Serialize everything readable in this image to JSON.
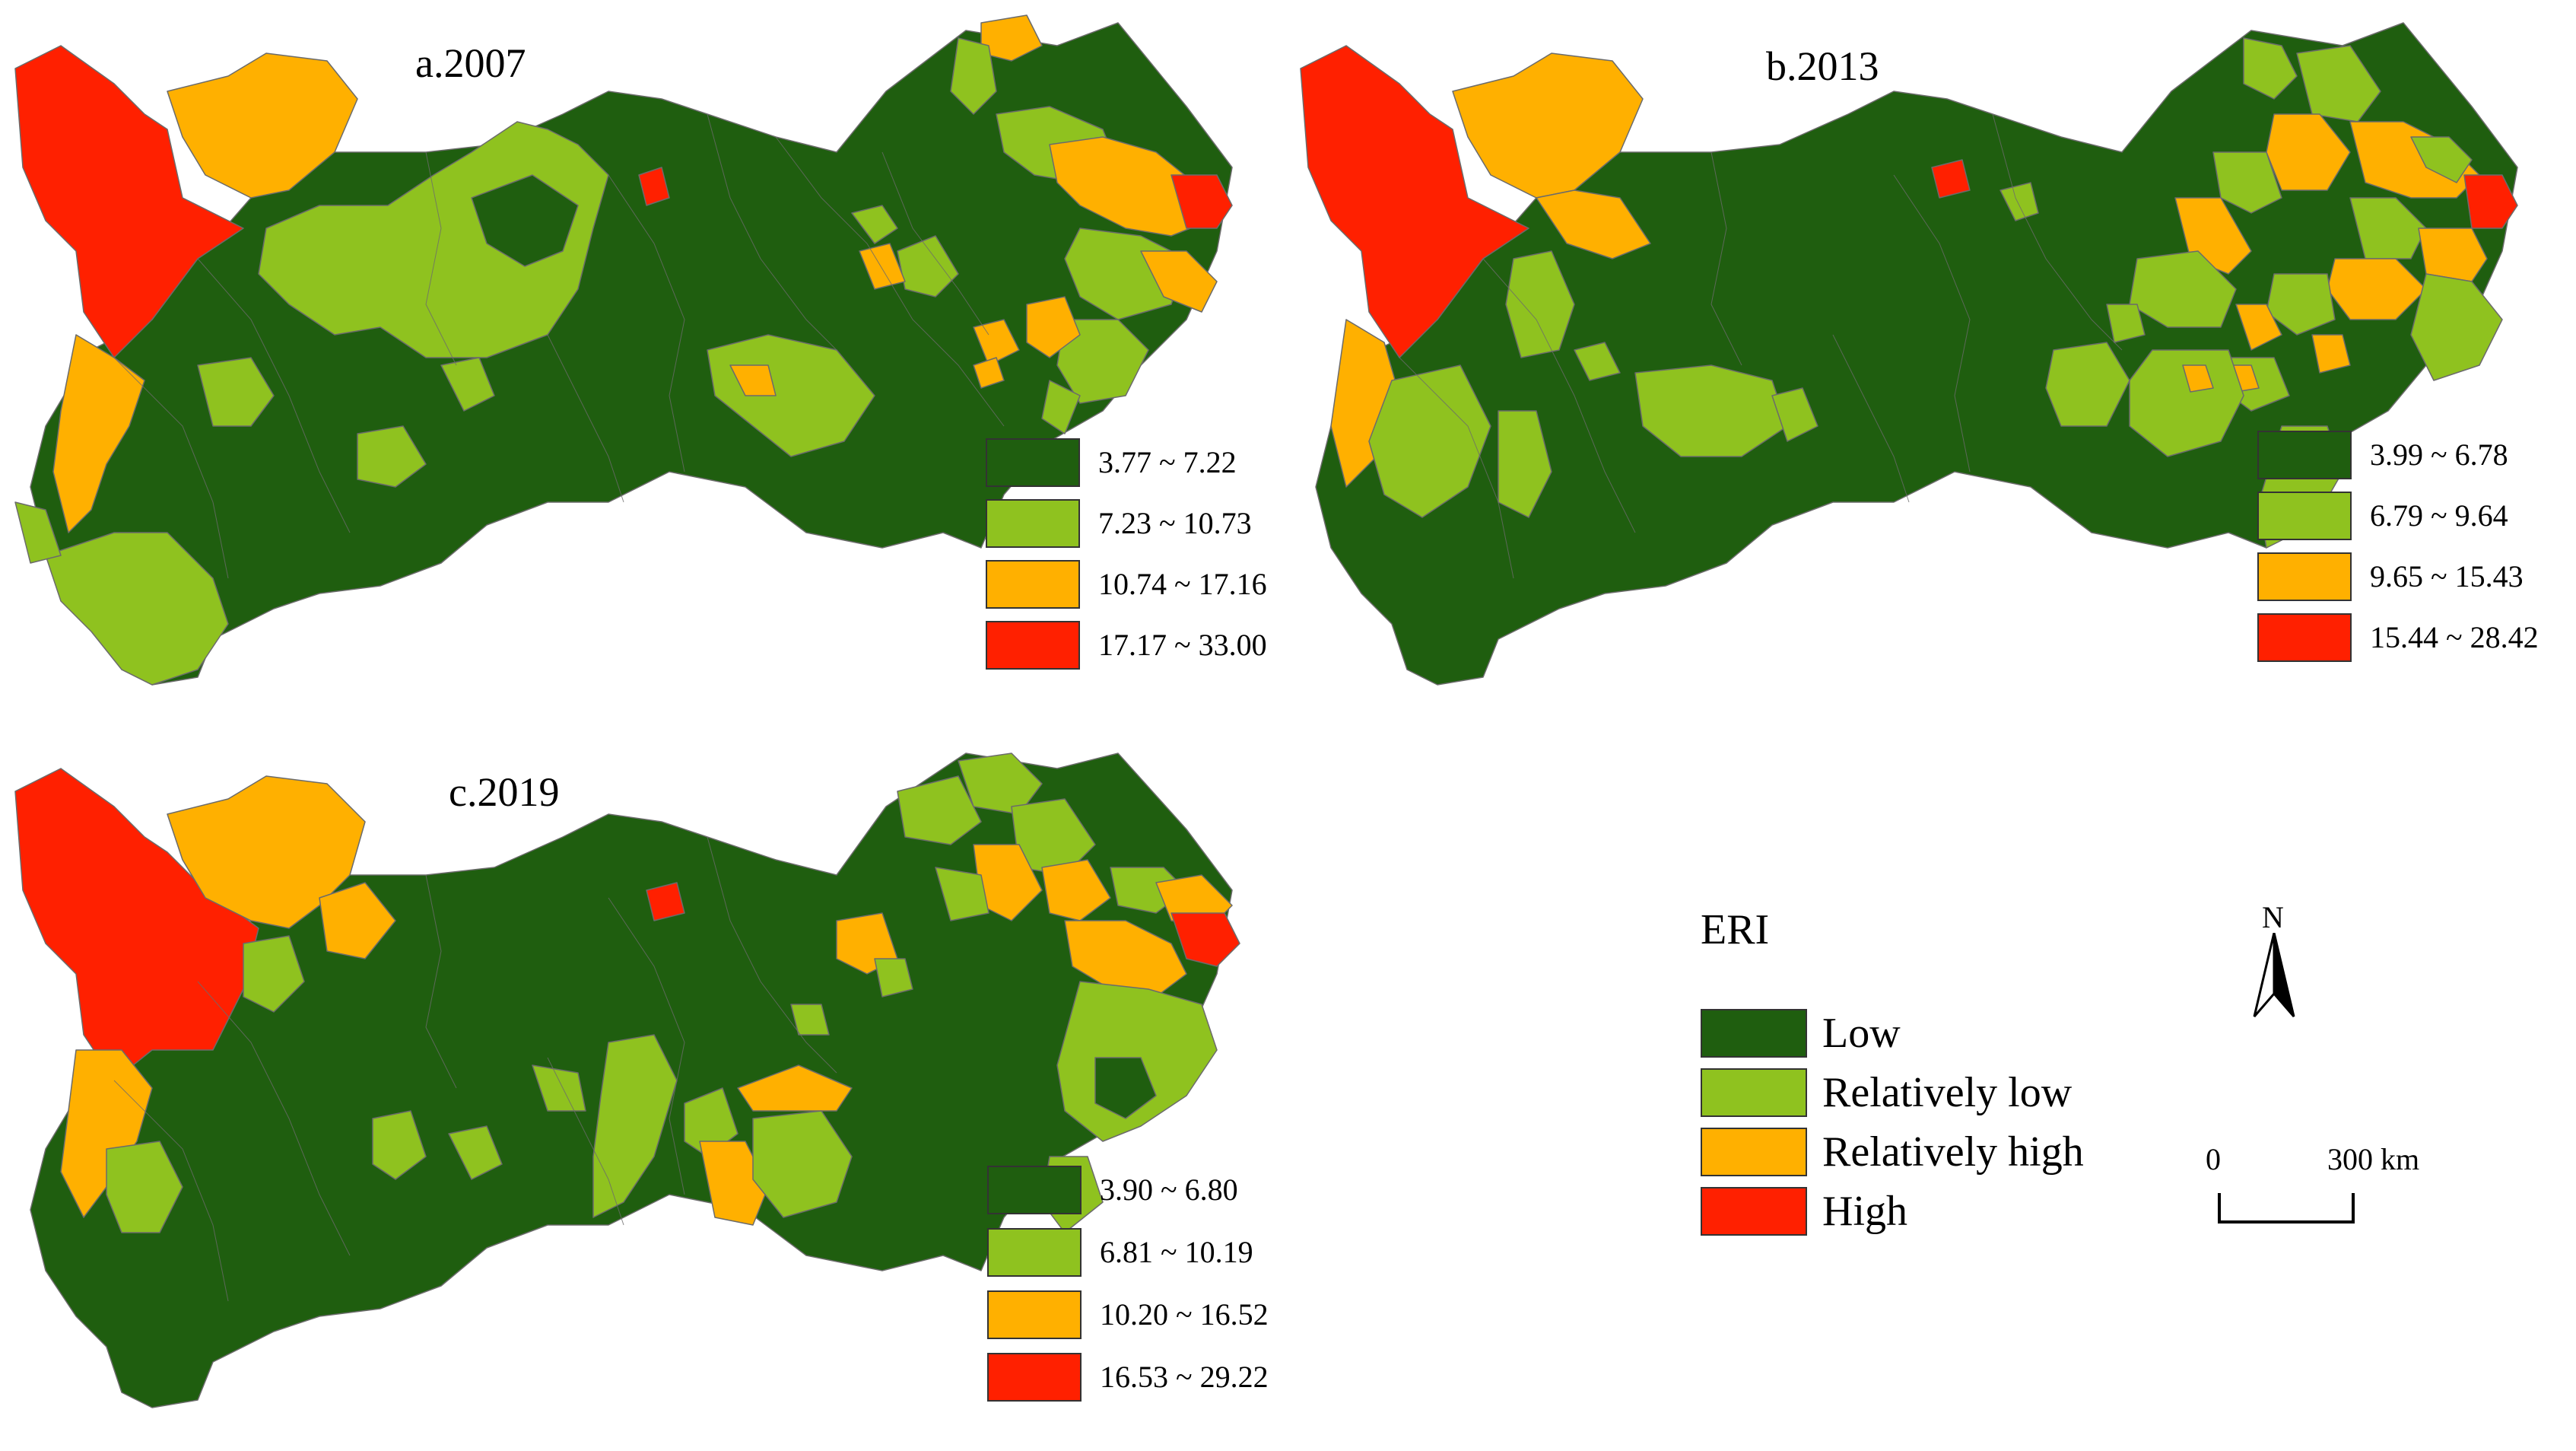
{
  "maps": [
    {
      "title": "a.2007",
      "legend": [
        {
          "range": "3.77 ~ 7.22",
          "class": "low",
          "color": "#1f5e0f"
        },
        {
          "range": "7.23 ~ 10.73",
          "class": "relatively-low",
          "color": "#8fc21f"
        },
        {
          "range": "10.74 ~ 17.16",
          "class": "relatively-high",
          "color": "#ffb000"
        },
        {
          "range": "17.17 ~ 33.00",
          "class": "high",
          "color": "#ff2000"
        }
      ]
    },
    {
      "title": "b.2013",
      "legend": [
        {
          "range": "3.99 ~ 6.78",
          "class": "low",
          "color": "#1f5e0f"
        },
        {
          "range": "6.79 ~ 9.64",
          "class": "relatively-low",
          "color": "#8fc21f"
        },
        {
          "range": "9.65 ~ 15.43",
          "class": "relatively-high",
          "color": "#ffb000"
        },
        {
          "range": "15.44 ~ 28.42",
          "class": "high",
          "color": "#ff2000"
        }
      ]
    },
    {
      "title": "c.2019",
      "legend": [
        {
          "range": "3.90 ~ 6.80",
          "class": "low",
          "color": "#1f5e0f"
        },
        {
          "range": "6.81 ~ 10.19",
          "class": "relatively-low",
          "color": "#8fc21f"
        },
        {
          "range": "10.20 ~ 16.52",
          "class": "relatively-high",
          "color": "#ffb000"
        },
        {
          "range": "16.53 ~ 29.22",
          "class": "high",
          "color": "#ff2000"
        }
      ]
    }
  ],
  "eri_legend": {
    "title": "ERI",
    "items": [
      {
        "label": "Low",
        "color": "#1f5e0f"
      },
      {
        "label": "Relatively low",
        "color": "#8fc21f"
      },
      {
        "label": "Relatively high",
        "color": "#ffb000"
      },
      {
        "label": "High",
        "color": "#ff2000"
      }
    ]
  },
  "north_arrow": {
    "label": "N"
  },
  "scale_bar": {
    "start": "0",
    "end": "300 km"
  }
}
